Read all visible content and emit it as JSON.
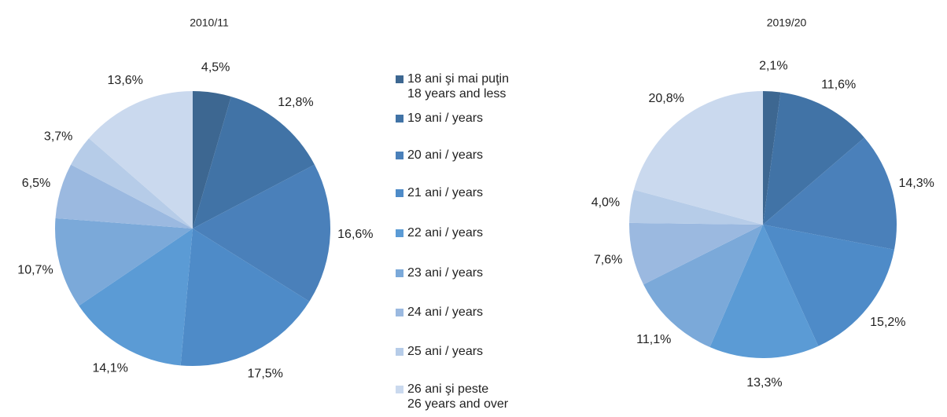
{
  "chart_data": [
    {
      "type": "pie",
      "title": "2010/11",
      "categories": [
        "18 ani şi mai puţin\n18 years and less",
        "19 ani / years",
        "20 ani / years",
        "21 ani / years",
        "22 ani / years",
        "23 ani / years",
        "24 ani / years",
        "25 ani / years",
        "26 ani şi peste\n26 years and over"
      ],
      "values": [
        4.5,
        12.8,
        16.6,
        17.5,
        14.1,
        10.7,
        6.5,
        3.7,
        13.6
      ],
      "value_labels": [
        "4,5%",
        "12,8%",
        "16,6%",
        "17,5%",
        "14,1%",
        "10,7%",
        "6,5%",
        "3,7%",
        "13,6%"
      ],
      "colors": [
        "#3d6791",
        "#4173a6",
        "#4a80ba",
        "#4e8bc8",
        "#5b9bd5",
        "#7ba9d9",
        "#9bb9e0",
        "#b6cce8",
        "#cad9ee"
      ]
    },
    {
      "type": "pie",
      "title": "2019/20",
      "values": [
        2.1,
        11.6,
        14.3,
        15.2,
        13.3,
        11.1,
        7.6,
        4.0,
        20.8
      ],
      "value_labels": [
        "2,1%",
        "11,6%",
        "14,3%",
        "15,2%",
        "13,3%",
        "11,1%",
        "7,6%",
        "4,0%",
        "20,8%"
      ]
    }
  ]
}
